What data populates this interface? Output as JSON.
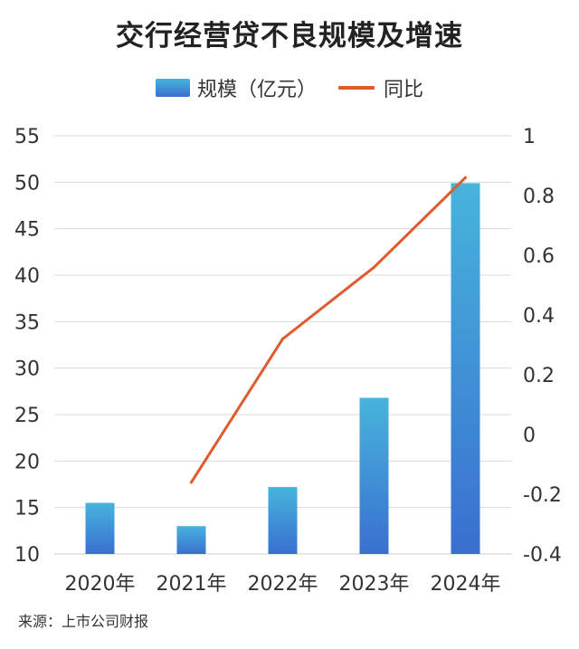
{
  "chart_data": {
    "type": "bar+line",
    "title": "交行经营贷不良规模及增速",
    "categories": [
      "2020年",
      "2021年",
      "2022年",
      "2023年",
      "2024年"
    ],
    "series": [
      {
        "name": "规模（亿元）",
        "type": "bar",
        "axis": "left",
        "values": [
          15.5,
          13.0,
          17.2,
          26.8,
          49.9
        ]
      },
      {
        "name": "同比",
        "type": "line",
        "axis": "right",
        "values": [
          null,
          -0.16,
          0.32,
          0.56,
          0.86
        ]
      }
    ],
    "left_axis": {
      "min": 10,
      "max": 55,
      "ticks": [
        "10",
        "15",
        "20",
        "25",
        "30",
        "35",
        "40",
        "45",
        "50",
        "55"
      ]
    },
    "right_axis": {
      "min": -0.4,
      "max": 1,
      "ticks": [
        "-0.4",
        "-0.2",
        "0",
        "0.2",
        "0.4",
        "0.6",
        "0.8",
        "1"
      ]
    },
    "grid": true,
    "legend_position": "top-center",
    "colors": {
      "bar_top": "#47b4dc",
      "bar_bottom": "#3a6fd0",
      "line": "#e05a2e",
      "grid": "#d9d9d9",
      "axis": "#cccccc"
    }
  },
  "legend": {
    "bar_label": "规模（亿元）",
    "line_label": "同比"
  },
  "source_text": "来源：上市公司财报"
}
